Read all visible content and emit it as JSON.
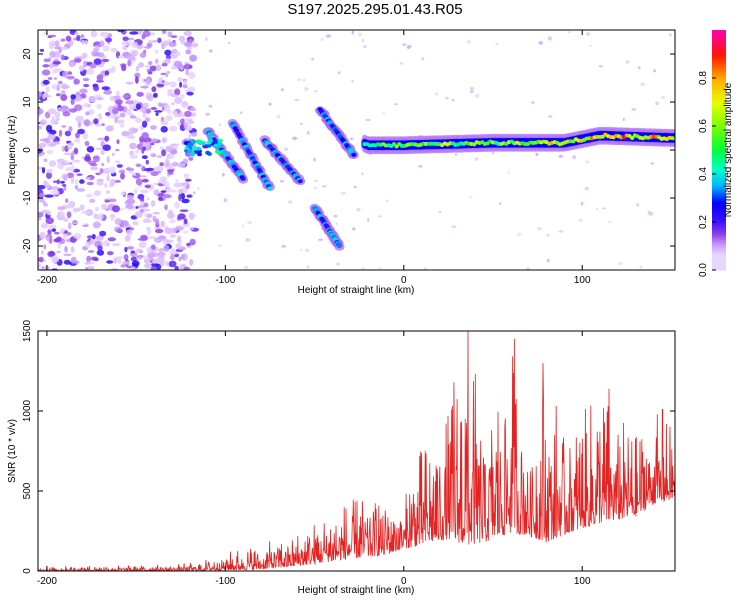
{
  "title": "S197.2025.295.01.43.R05",
  "colors": {
    "snr_line": "#e32222",
    "axis": "#000000",
    "colormap": [
      "#ffffff",
      "#f0e6ff",
      "#cfa6ff",
      "#8a2be2",
      "#3b10ff",
      "#0000ff",
      "#00ccff",
      "#00ff88",
      "#00ff00",
      "#bfff00",
      "#ffff00",
      "#ffa500",
      "#ff0000",
      "#ff00aa"
    ]
  },
  "chart_data": [
    {
      "type": "heatmap",
      "xlabel": "Height of straight line (km)",
      "ylabel": "Frequency (Hz)",
      "xlim": [
        -205,
        152
      ],
      "ylim": [
        -25,
        25
      ],
      "xticks": [
        -200,
        -100,
        0,
        100
      ],
      "yticks": [
        -20,
        -10,
        0,
        10,
        20
      ],
      "colorbar": {
        "label": "Normalized spectral amplitude",
        "range": [
          0.0,
          1.0
        ],
        "ticks": [
          0.0,
          0.2,
          0.4,
          0.6,
          0.8
        ]
      },
      "noise_region_x": [
        -205,
        -120
      ],
      "ridge": [
        {
          "x": -120,
          "f": 0.0,
          "a": 0.45
        },
        {
          "x": -100,
          "f": 2.0,
          "a": 0.35
        },
        {
          "x": -85,
          "f": -2.0,
          "a": 0.3
        },
        {
          "x": -70,
          "f": -3.0,
          "a": 0.3
        },
        {
          "x": -55,
          "f": -5.0,
          "a": 0.3
        },
        {
          "x": -45,
          "f": 6.0,
          "a": 0.2
        },
        {
          "x": -35,
          "f": 3.5,
          "a": 0.3
        },
        {
          "x": -20,
          "f": 1.0,
          "a": 0.5
        },
        {
          "x": 0,
          "f": 1.0,
          "a": 0.6
        },
        {
          "x": 50,
          "f": 1.5,
          "a": 0.6
        },
        {
          "x": 90,
          "f": 1.5,
          "a": 0.75
        },
        {
          "x": 110,
          "f": 3.0,
          "a": 0.85
        },
        {
          "x": 150,
          "f": 2.5,
          "a": 0.75
        }
      ],
      "streaks": [
        {
          "x0": -110,
          "f0": 4.0,
          "x1": -90,
          "f1": -6.0
        },
        {
          "x0": -96,
          "f0": 5.5,
          "x1": -75,
          "f1": -8.0
        },
        {
          "x0": -78,
          "f0": 2.0,
          "x1": -58,
          "f1": -6.5
        },
        {
          "x0": -47,
          "f0": 8.5,
          "x1": -28,
          "f1": -1.0
        },
        {
          "x0": -50,
          "f0": -12.0,
          "x1": -36,
          "f1": -20.0
        }
      ]
    },
    {
      "type": "line",
      "xlabel": "Height of straight line (km)",
      "ylabel": "SNR (10 * v/v)",
      "xlim": [
        -205,
        152
      ],
      "ylim": [
        0,
        1500
      ],
      "xticks": [
        -200,
        -100,
        0,
        100
      ],
      "yticks": [
        0,
        500,
        1000,
        1500
      ],
      "envelope": {
        "x": [
          -205,
          -130,
          -115,
          -100,
          -80,
          -60,
          -40,
          -20,
          -10,
          0,
          5,
          15,
          25,
          35,
          45,
          60,
          70,
          80,
          95,
          110,
          120,
          130,
          140,
          152
        ],
        "min": [
          0,
          0,
          0,
          5,
          10,
          30,
          60,
          90,
          100,
          140,
          150,
          180,
          200,
          160,
          180,
          240,
          220,
          180,
          250,
          300,
          320,
          340,
          420,
          450
        ],
        "max": [
          30,
          40,
          60,
          120,
          170,
          240,
          400,
          500,
          520,
          420,
          700,
          850,
          1000,
          1500,
          1000,
          1450,
          900,
          1200,
          900,
          1150,
          1000,
          850,
          1000,
          900
        ]
      },
      "peaks": [
        {
          "x": 36,
          "y": 1500
        },
        {
          "x": 62,
          "y": 1450
        },
        {
          "x": 78,
          "y": 1300
        },
        {
          "x": 28,
          "y": 1180
        },
        {
          "x": 115,
          "y": 1140
        },
        {
          "x": 145,
          "y": 1010
        }
      ]
    }
  ]
}
